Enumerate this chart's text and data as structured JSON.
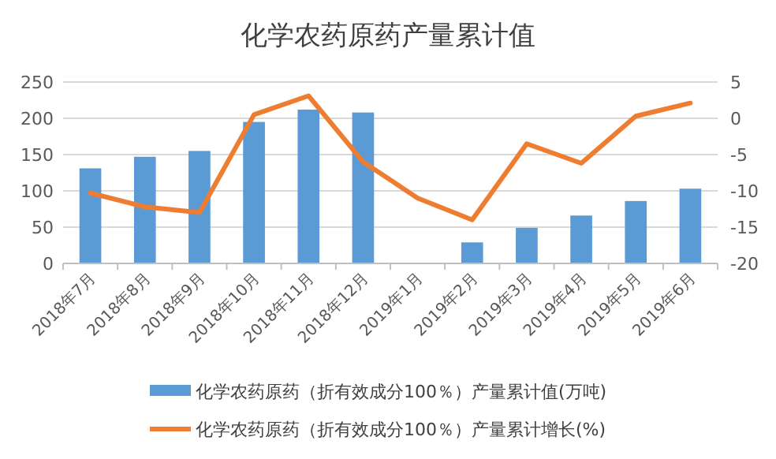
{
  "chart_data": {
    "type": "bar",
    "title": "化学农药原药产量累计值",
    "categories": [
      "2018年7月",
      "2018年8月",
      "2018年9月",
      "2018年10月",
      "2018年11月",
      "2018年12月",
      "2019年1月",
      "2019年2月",
      "2019年3月",
      "2019年4月",
      "2019年5月",
      "2019年6月"
    ],
    "series": [
      {
        "name": "化学农药原药（折有效成分100％）产量累计值(万吨)",
        "color": "#5b9bd5",
        "values": [
          131,
          147,
          155,
          195,
          212,
          208,
          null,
          29,
          49,
          66,
          86,
          103
        ]
      },
      {
        "name": "化学农药原药（折有效成分100％）产量累计增长(%)",
        "type": "line",
        "axis": "y2",
        "color": "#ed7d31",
        "values": [
          -10.3,
          -12.2,
          -13,
          0.5,
          3.1,
          -6,
          -11,
          -14,
          -3.5,
          -6.2,
          0.3,
          2.1
        ]
      }
    ],
    "ylim": [
      0,
      250
    ],
    "yticks": [
      0,
      50,
      100,
      150,
      200,
      250
    ],
    "y2lim": [
      -20,
      5
    ],
    "y2ticks": [
      -20,
      -15,
      -10,
      -5,
      0,
      5
    ],
    "grid": "y",
    "legend": "bottom",
    "marker": "none",
    "line_style": "solid"
  }
}
